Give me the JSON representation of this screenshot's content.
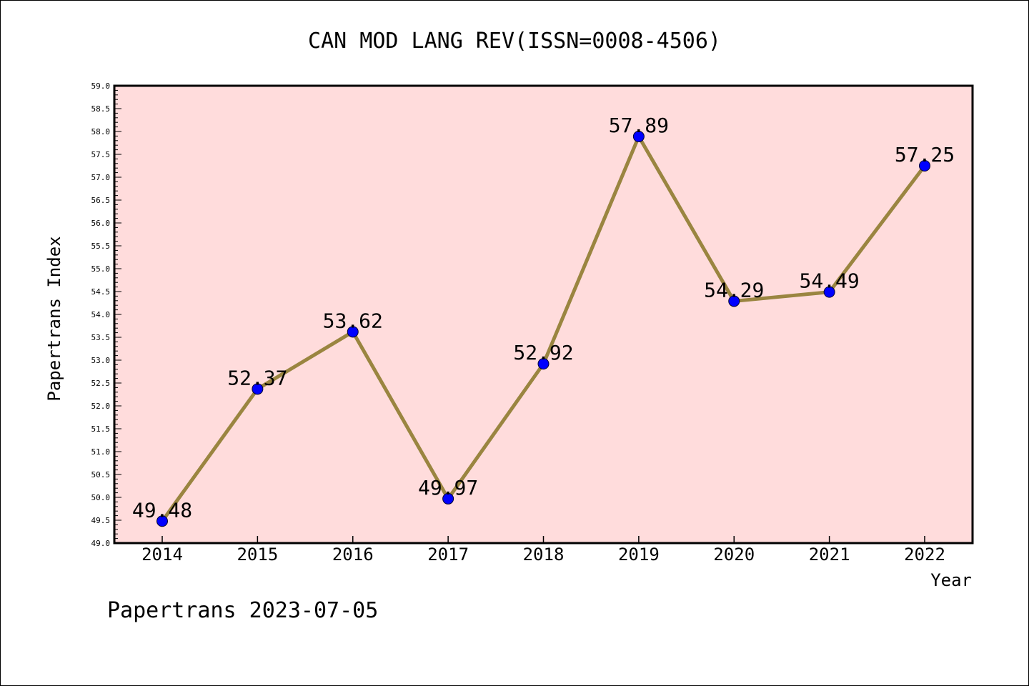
{
  "chart_data": {
    "type": "line",
    "title": "CAN MOD LANG REV(ISSN=0008-4506)",
    "xlabel": "Year",
    "ylabel": "Papertrans Index",
    "categories": [
      "2014",
      "2015",
      "2016",
      "2017",
      "2018",
      "2019",
      "2020",
      "2021",
      "2022"
    ],
    "values": [
      49.48,
      52.37,
      53.62,
      49.97,
      52.92,
      57.89,
      54.29,
      54.49,
      57.25
    ],
    "data_labels": [
      "49.48",
      "52.37",
      "53.62",
      "49.97",
      "52.92",
      "57.89",
      "54.29",
      "54.49",
      "57.25"
    ],
    "ylim": [
      49.0,
      59.0
    ],
    "yticks": [
      "49.0",
      "49.5",
      "50.0",
      "50.5",
      "51.0",
      "51.5",
      "52.0",
      "52.5",
      "53.0",
      "53.5",
      "54.0",
      "54.5",
      "55.0",
      "55.5",
      "56.0",
      "56.5",
      "57.0",
      "57.5",
      "58.0",
      "58.5",
      "59.0"
    ],
    "grid": false,
    "legend": "none",
    "colors": {
      "plot_background": "#ffdcdc",
      "line": "#9a8540",
      "marker": "#0000ff"
    }
  },
  "footer": {
    "text": "Papertrans 2023-07-05"
  }
}
